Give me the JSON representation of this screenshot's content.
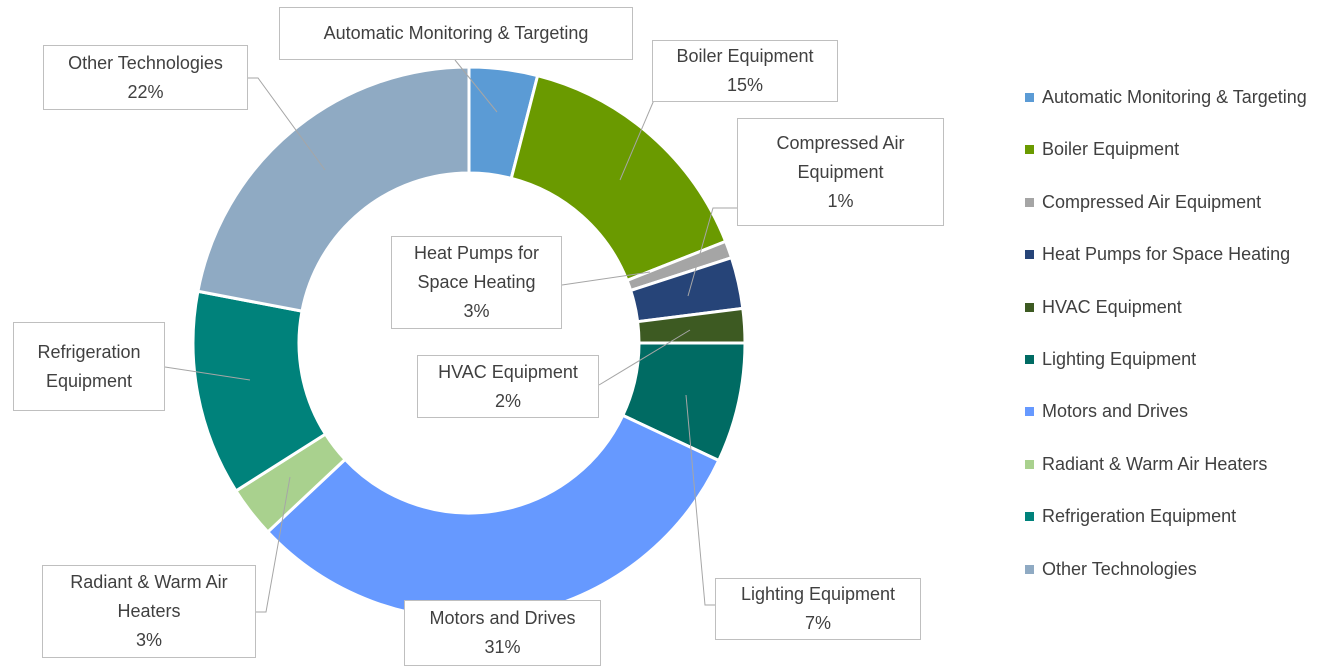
{
  "chart_data": {
    "type": "donut",
    "categories": [
      "Automatic Monitoring & Targeting",
      "Boiler Equipment",
      "Compressed Air Equipment",
      "Heat Pumps for Space Heating",
      "HVAC Equipment",
      "Lighting Equipment",
      "Motors and Drives",
      "Radiant & Warm Air Heaters",
      "Refrigeration Equipment",
      "Other Technologies"
    ],
    "values": [
      4,
      15,
      1,
      3,
      2,
      7,
      31,
      3,
      12,
      22
    ],
    "value_labels": [
      null,
      "15%",
      "1%",
      "3%",
      "2%",
      "7%",
      "31%",
      "3%",
      null,
      "22%"
    ],
    "colors": [
      "#5b9bd5",
      "#6a9a00",
      "#a5a5a5",
      "#264478",
      "#3d5a22",
      "#006b63",
      "#6699ff",
      "#a9d18e",
      "#00827b",
      "#8faac3"
    ],
    "legend": "right"
  }
}
